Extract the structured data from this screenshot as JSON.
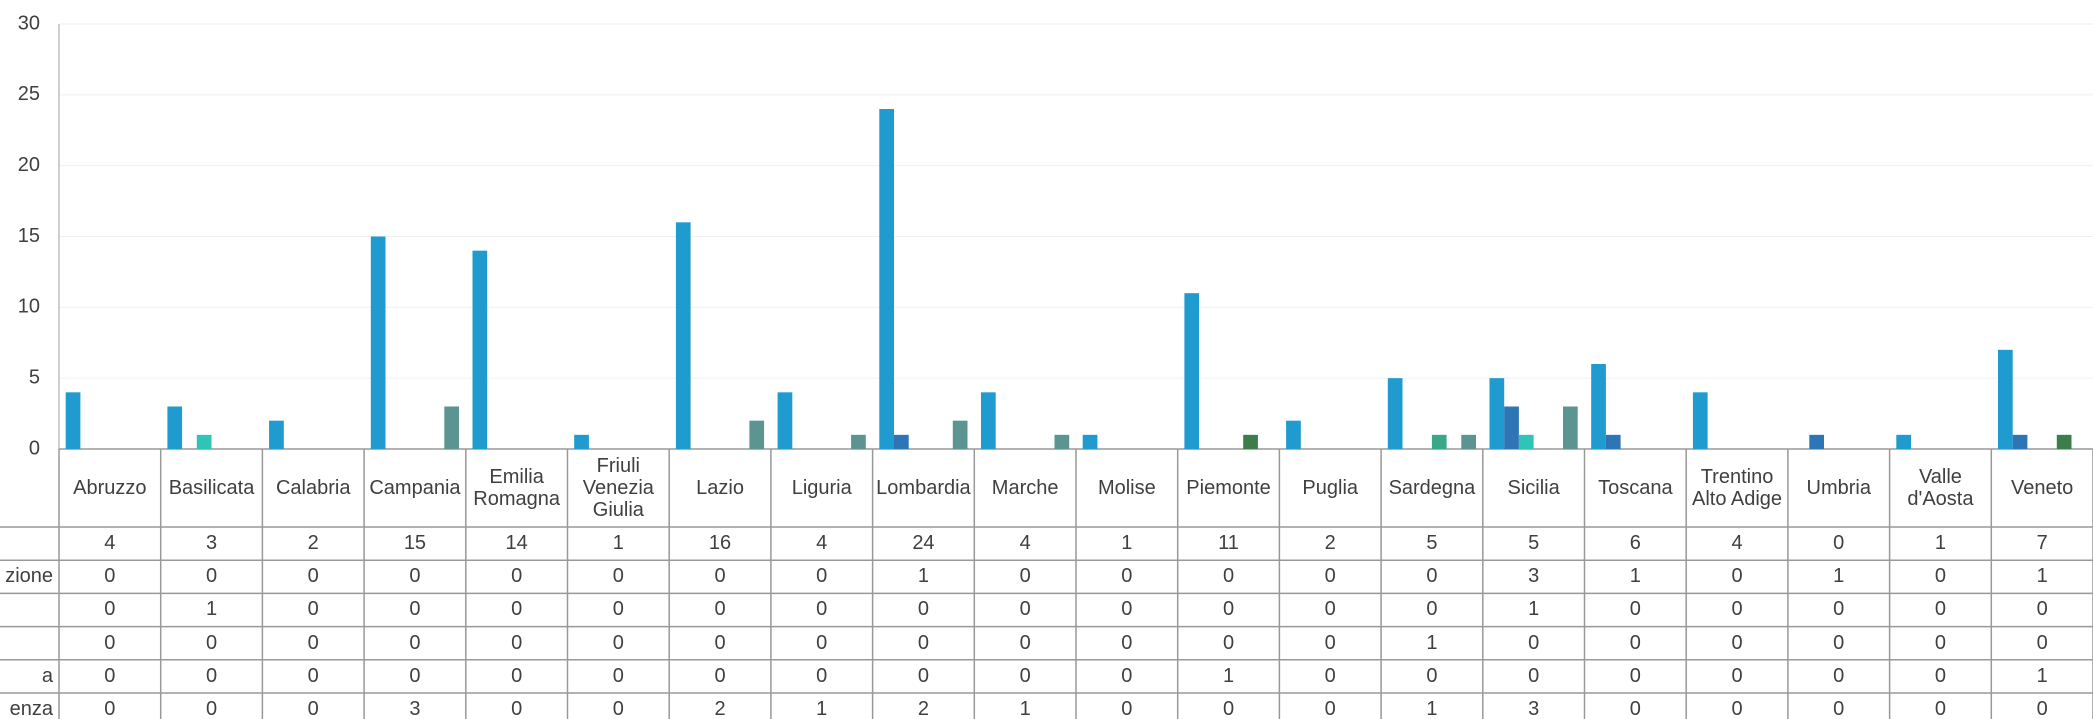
{
  "chart_data": {
    "type": "bar",
    "categories": [
      "Abruzzo",
      "Basilicata",
      "Calabria",
      "Campania",
      "Emilia Romagna",
      "Friuli Venezia Giulia",
      "Lazio",
      "Liguria",
      "Lombardia",
      "Marche",
      "Molise",
      "Piemonte",
      "Puglia",
      "Sardegna",
      "Sicilia",
      "Toscana",
      "Trentino Alto Adige",
      "Umbria",
      "Valle d'Aosta",
      "Veneto"
    ],
    "series": [
      {
        "color": "#1f9bcf",
        "values": [
          4,
          3,
          2,
          15,
          14,
          1,
          16,
          4,
          24,
          4,
          1,
          11,
          2,
          5,
          5,
          6,
          4,
          0,
          1,
          7
        ]
      },
      {
        "name": "zione",
        "color": "#2e75b6",
        "values": [
          0,
          0,
          0,
          0,
          0,
          0,
          0,
          0,
          1,
          0,
          0,
          0,
          0,
          0,
          3,
          1,
          0,
          1,
          0,
          1
        ]
      },
      {
        "color": "#2ec4b6",
        "values": [
          0,
          1,
          0,
          0,
          0,
          0,
          0,
          0,
          0,
          0,
          0,
          0,
          0,
          0,
          1,
          0,
          0,
          0,
          0,
          0
        ]
      },
      {
        "color": "#3aa887",
        "values": [
          0,
          0,
          0,
          0,
          0,
          0,
          0,
          0,
          0,
          0,
          0,
          0,
          0,
          1,
          0,
          0,
          0,
          0,
          0,
          0
        ]
      },
      {
        "name": "a",
        "color": "#3b7d4b",
        "values": [
          0,
          0,
          0,
          0,
          0,
          0,
          0,
          0,
          0,
          0,
          0,
          1,
          0,
          0,
          0,
          0,
          0,
          0,
          0,
          1
        ]
      },
      {
        "name": "enza",
        "color": "#5b9490",
        "values": [
          0,
          0,
          0,
          3,
          0,
          0,
          2,
          1,
          2,
          1,
          0,
          0,
          0,
          1,
          3,
          0,
          0,
          0,
          0,
          0
        ]
      }
    ],
    "ylim": [
      0,
      30
    ],
    "yticks": [
      0,
      5,
      10,
      15,
      20,
      25,
      30
    ],
    "grid": true
  }
}
